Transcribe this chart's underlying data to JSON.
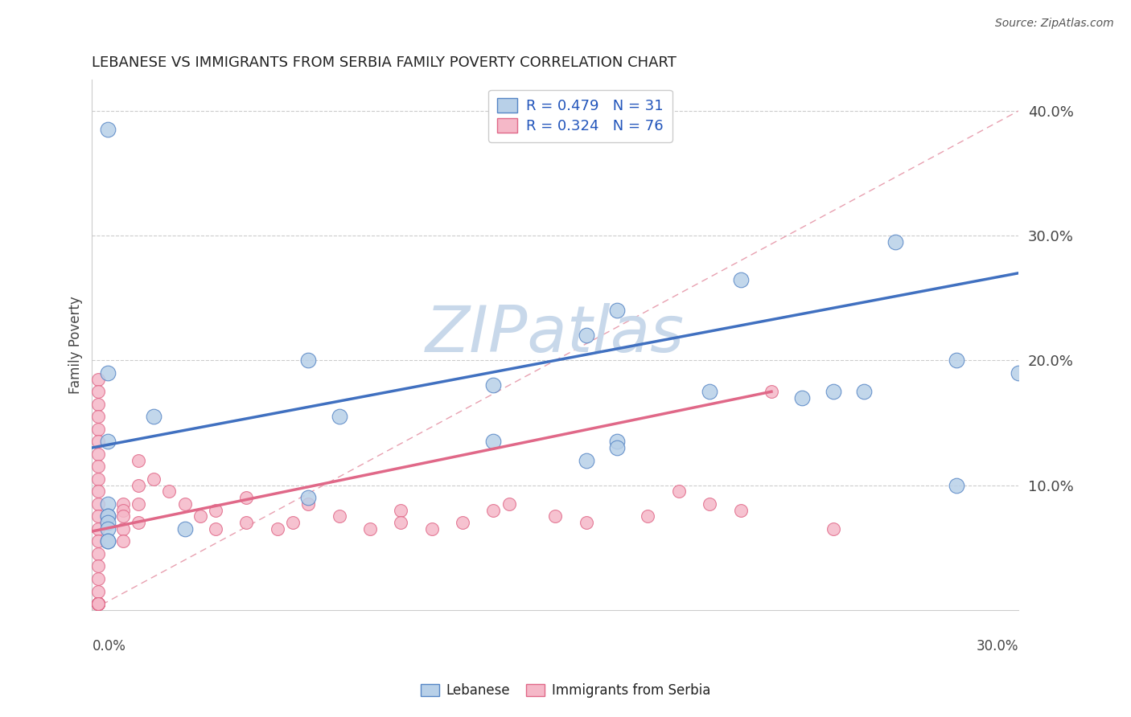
{
  "title": "LEBANESE VS IMMIGRANTS FROM SERBIA FAMILY POVERTY CORRELATION CHART",
  "source": "Source: ZipAtlas.com",
  "ylabel": "Family Poverty",
  "xmin": 0.0,
  "xmax": 0.3,
  "ymin": 0.0,
  "ymax": 0.425,
  "yticks": [
    0.0,
    0.1,
    0.2,
    0.3,
    0.4
  ],
  "ytick_labels": [
    "",
    "10.0%",
    "20.0%",
    "30.0%",
    "40.0%"
  ],
  "color_lebanese_fill": "#b8d0e8",
  "color_lebanese_edge": "#5585c5",
  "color_serbia_fill": "#f5b8c8",
  "color_serbia_edge": "#e06888",
  "color_line_lebanese": "#4070c0",
  "color_line_serbia": "#e06888",
  "color_diag": "#e8a0b0",
  "watermark": "ZIPatlas",
  "watermark_color": "#c8d8ea",
  "leb_line_x0": 0.0,
  "leb_line_y0": 0.13,
  "leb_line_x1": 0.3,
  "leb_line_y1": 0.27,
  "serb_line_x0": 0.0,
  "serb_line_y0": 0.063,
  "serb_line_x1": 0.22,
  "serb_line_y1": 0.175,
  "lebanese_x": [
    0.005,
    0.005,
    0.005,
    0.005,
    0.005,
    0.005,
    0.005,
    0.005,
    0.005,
    0.005,
    0.02,
    0.03,
    0.07,
    0.08,
    0.07,
    0.13,
    0.13,
    0.16,
    0.16,
    0.17,
    0.17,
    0.21,
    0.23,
    0.24,
    0.26,
    0.28,
    0.17,
    0.2,
    0.25,
    0.3,
    0.28
  ],
  "lebanese_y": [
    0.385,
    0.19,
    0.135,
    0.085,
    0.075,
    0.075,
    0.07,
    0.065,
    0.055,
    0.055,
    0.155,
    0.065,
    0.2,
    0.155,
    0.09,
    0.135,
    0.18,
    0.22,
    0.12,
    0.135,
    0.13,
    0.265,
    0.17,
    0.175,
    0.295,
    0.2,
    0.24,
    0.175,
    0.175,
    0.19,
    0.1
  ],
  "serbia_x": [
    0.002,
    0.002,
    0.002,
    0.002,
    0.002,
    0.002,
    0.002,
    0.002,
    0.002,
    0.002,
    0.002,
    0.002,
    0.002,
    0.002,
    0.002,
    0.002,
    0.002,
    0.002,
    0.002,
    0.002,
    0.002,
    0.002,
    0.002,
    0.002,
    0.002,
    0.002,
    0.002,
    0.002,
    0.002,
    0.002,
    0.002,
    0.002,
    0.002,
    0.002,
    0.002,
    0.002,
    0.002,
    0.002,
    0.002,
    0.002,
    0.01,
    0.01,
    0.01,
    0.01,
    0.01,
    0.015,
    0.015,
    0.015,
    0.015,
    0.02,
    0.025,
    0.03,
    0.035,
    0.04,
    0.04,
    0.05,
    0.05,
    0.06,
    0.065,
    0.07,
    0.08,
    0.09,
    0.1,
    0.1,
    0.11,
    0.12,
    0.13,
    0.135,
    0.15,
    0.16,
    0.18,
    0.19,
    0.2,
    0.21,
    0.22,
    0.24
  ],
  "serbia_y": [
    0.185,
    0.175,
    0.165,
    0.155,
    0.145,
    0.135,
    0.125,
    0.115,
    0.105,
    0.095,
    0.085,
    0.075,
    0.065,
    0.055,
    0.045,
    0.035,
    0.025,
    0.015,
    0.005,
    0.005,
    0.005,
    0.005,
    0.005,
    0.005,
    0.005,
    0.005,
    0.005,
    0.005,
    0.005,
    0.005,
    0.005,
    0.005,
    0.005,
    0.005,
    0.005,
    0.005,
    0.005,
    0.005,
    0.005,
    0.005,
    0.085,
    0.08,
    0.075,
    0.065,
    0.055,
    0.12,
    0.1,
    0.085,
    0.07,
    0.105,
    0.095,
    0.085,
    0.075,
    0.065,
    0.08,
    0.07,
    0.09,
    0.065,
    0.07,
    0.085,
    0.075,
    0.065,
    0.08,
    0.07,
    0.065,
    0.07,
    0.08,
    0.085,
    0.075,
    0.07,
    0.075,
    0.095,
    0.085,
    0.08,
    0.175,
    0.065
  ]
}
